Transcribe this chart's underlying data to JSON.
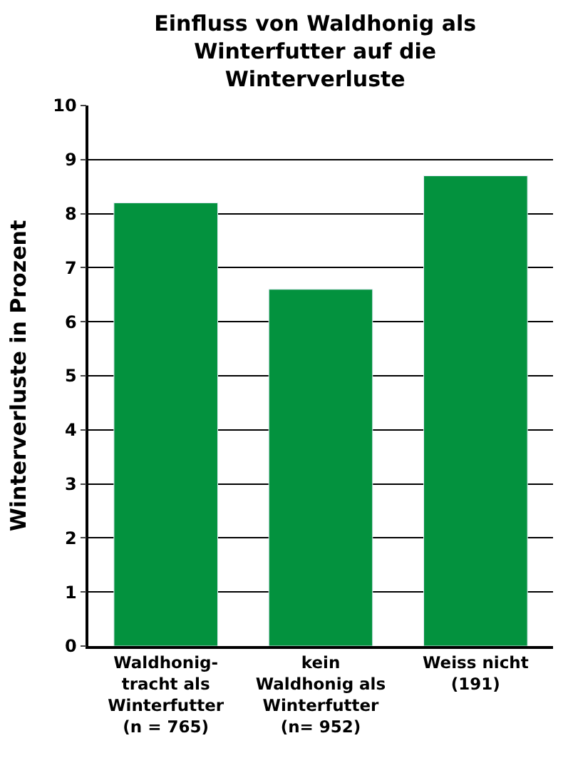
{
  "chart_data": {
    "type": "bar",
    "title": "Einfluss von Waldhonig als\nWinterfutter auf die\nWinterverluste",
    "ylabel": "Winterverluste in Prozent",
    "categories": [
      "Waldhonig-\ntracht als\nWinterfutter\n(n = 765)",
      "kein\nWaldhonig als\nWinterfutter\n(n= 952)",
      "Weiss nicht\n(191)"
    ],
    "values": [
      8.2,
      6.6,
      8.7
    ],
    "color": "#03923e",
    "ylim": [
      0,
      10
    ],
    "yticks": [
      0,
      1,
      2,
      3,
      4,
      5,
      6,
      7,
      8,
      9,
      10
    ],
    "grid": "y"
  }
}
